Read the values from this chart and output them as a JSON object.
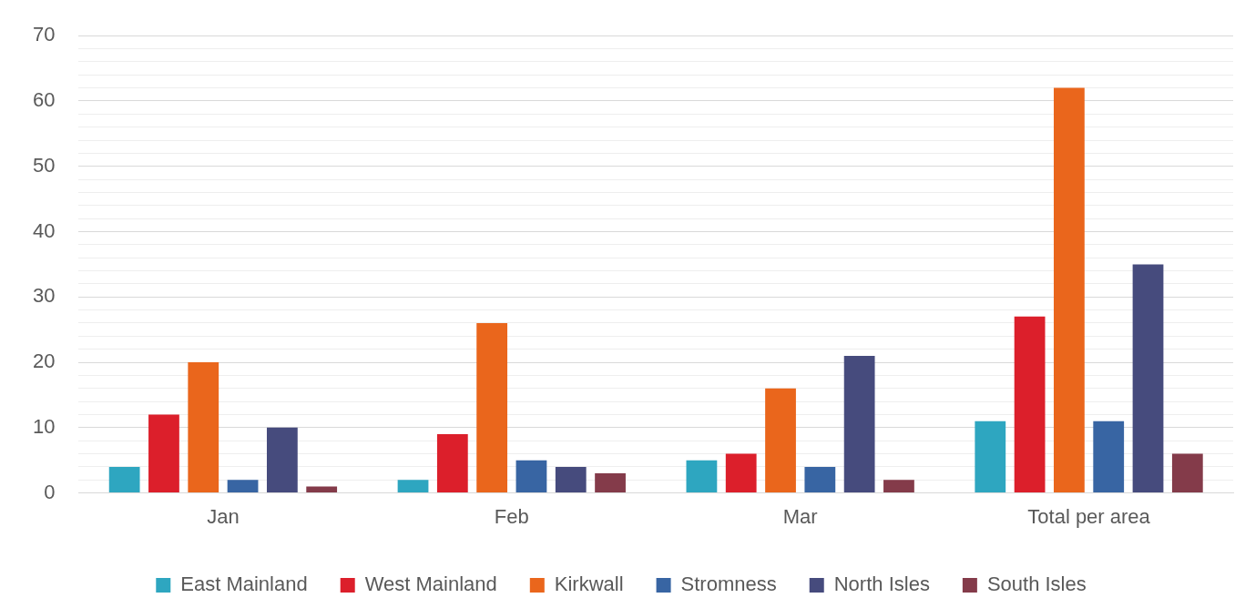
{
  "chart_data": {
    "type": "bar",
    "categories": [
      "Jan",
      "Feb",
      "Mar",
      "Total per area"
    ],
    "series": [
      {
        "name": "East Mainland",
        "color": "#2ea6c0",
        "values": [
          4,
          2,
          5,
          11
        ]
      },
      {
        "name": "West Mainland",
        "color": "#dc1f2b",
        "values": [
          12,
          9,
          6,
          27
        ]
      },
      {
        "name": "Kirkwall",
        "color": "#ea661c",
        "values": [
          20,
          26,
          16,
          62
        ]
      },
      {
        "name": "Stromness",
        "color": "#3865a3",
        "values": [
          2,
          5,
          4,
          11
        ]
      },
      {
        "name": "North Isles",
        "color": "#464b7d",
        "values": [
          10,
          4,
          21,
          35
        ]
      },
      {
        "name": "South Isles",
        "color": "#843b4a",
        "values": [
          1,
          3,
          2,
          6
        ]
      }
    ],
    "ylim": [
      0,
      70
    ],
    "yticks": [
      0,
      {
        "value": 2,
        "label": null
      },
      {
        "value": 4,
        "label": null
      },
      {
        "value": 6,
        "label": null
      },
      {
        "value": 8,
        "label": null
      },
      10,
      {
        "value": 12,
        "label": null
      },
      {
        "value": 14,
        "label": null
      },
      {
        "value": 16,
        "label": null
      },
      {
        "value": 18,
        "label": null
      },
      20,
      {
        "value": 22,
        "label": null
      },
      {
        "value": 24,
        "label": null
      },
      {
        "value": 26,
        "label": null
      },
      {
        "value": 28,
        "label": null
      },
      30,
      {
        "value": 32,
        "label": null
      },
      {
        "value": 34,
        "label": null
      },
      {
        "value": 36,
        "label": null
      },
      {
        "value": 38,
        "label": null
      },
      40,
      {
        "value": 42,
        "label": null
      },
      {
        "value": 44,
        "label": null
      },
      {
        "value": 46,
        "label": null
      },
      {
        "value": 48,
        "label": null
      },
      50,
      {
        "value": 52,
        "label": null
      },
      {
        "value": 54,
        "label": null
      },
      {
        "value": 56,
        "label": null
      },
      {
        "value": 58,
        "label": null
      },
      60,
      {
        "value": 62,
        "label": null
      },
      {
        "value": 64,
        "label": null
      },
      {
        "value": 66,
        "label": null
      },
      {
        "value": 68,
        "label": null
      },
      70
    ],
    "grid": "y",
    "legend": "bottom"
  }
}
